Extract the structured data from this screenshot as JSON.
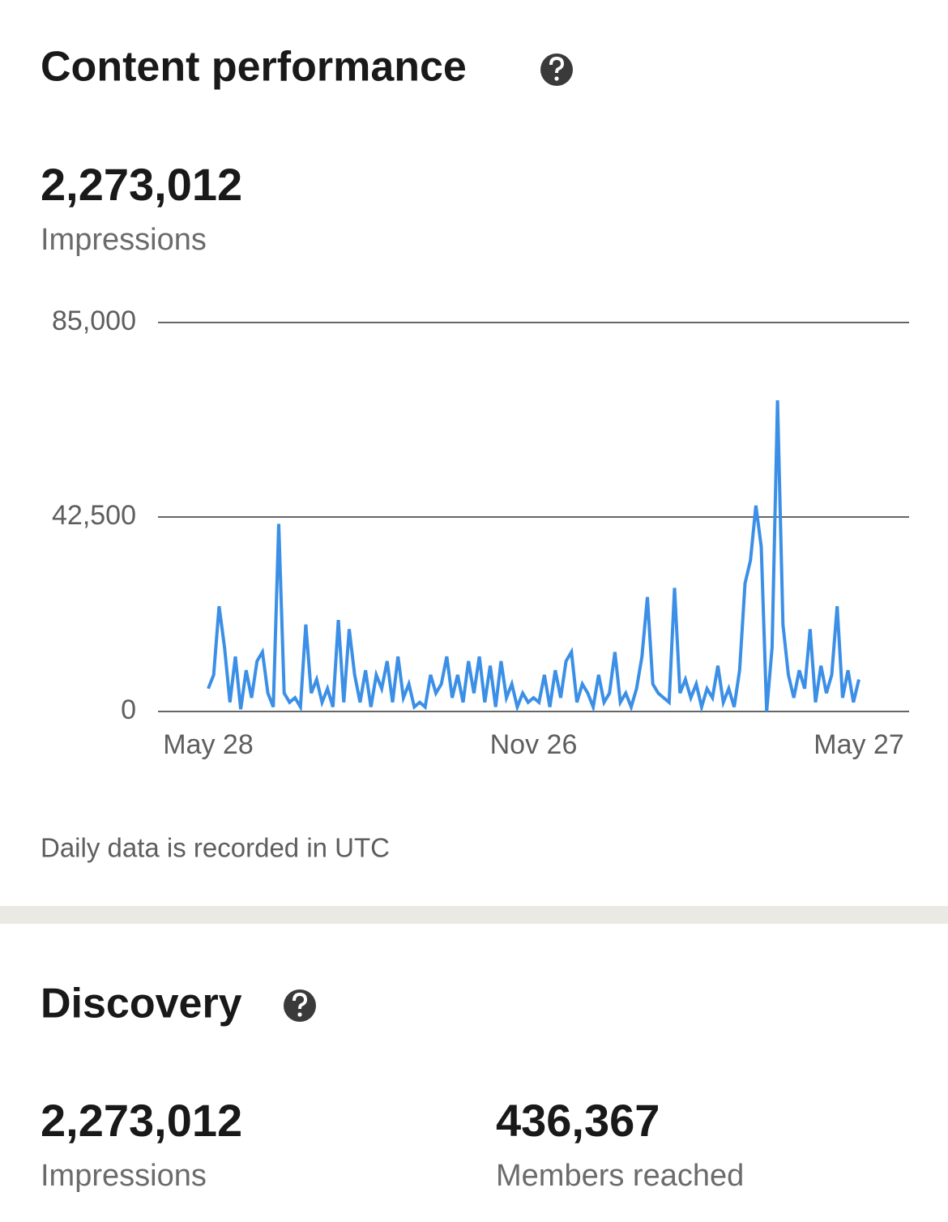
{
  "header": {
    "title": "Content performance"
  },
  "summary": {
    "value": "2,273,012",
    "label": "Impressions"
  },
  "chart_data": {
    "type": "line",
    "color": "#3b8fe6",
    "grid": true,
    "ylim": [
      0,
      85000
    ],
    "yticks": [
      0,
      {
        "value": 42500,
        "label": "42,500"
      },
      {
        "value": 85000,
        "label": "85,000"
      }
    ],
    "categories": [
      "May 28",
      null,
      null,
      null,
      null,
      null,
      null,
      null,
      null,
      null,
      null,
      null,
      null,
      null,
      null,
      null,
      null,
      null,
      null,
      null,
      null,
      null,
      null,
      null,
      null,
      null,
      null,
      null,
      null,
      null,
      null,
      null,
      null,
      null,
      null,
      null,
      null,
      null,
      null,
      null,
      null,
      null,
      null,
      null,
      null,
      null,
      null,
      null,
      null,
      null,
      null,
      null,
      null,
      null,
      null,
      null,
      null,
      null,
      null,
      null,
      "Nov 26",
      null,
      null,
      null,
      null,
      null,
      null,
      null,
      null,
      null,
      null,
      null,
      null,
      null,
      null,
      null,
      null,
      null,
      null,
      null,
      null,
      null,
      null,
      null,
      null,
      null,
      null,
      null,
      null,
      null,
      null,
      null,
      null,
      null,
      null,
      null,
      null,
      null,
      null,
      null,
      null,
      null,
      null,
      null,
      null,
      null,
      null,
      null,
      null,
      null,
      null,
      null,
      null,
      null,
      null,
      null,
      null,
      null,
      null,
      null,
      "May 27"
    ],
    "values": [
      5000,
      8000,
      23000,
      14000,
      2000,
      12000,
      500,
      9000,
      3000,
      11000,
      13000,
      4000,
      1000,
      41000,
      4000,
      2000,
      3000,
      1000,
      19000,
      4000,
      7000,
      2000,
      5000,
      1000,
      20000,
      2000,
      18000,
      8000,
      2000,
      9000,
      1000,
      8000,
      5000,
      11000,
      2000,
      12000,
      3000,
      6000,
      1000,
      2000,
      1000,
      8000,
      4000,
      6000,
      12000,
      3000,
      8000,
      2000,
      11000,
      4000,
      12000,
      2000,
      10000,
      1000,
      11000,
      3000,
      6000,
      1000,
      4000,
      2000,
      3000,
      2000,
      8000,
      1000,
      9000,
      3000,
      11000,
      13000,
      2000,
      6000,
      4000,
      1000,
      8000,
      2000,
      4000,
      13000,
      2000,
      4000,
      1000,
      5000,
      12000,
      25000,
      6000,
      4000,
      3000,
      2000,
      27000,
      4000,
      7000,
      3000,
      6000,
      1000,
      5000,
      3000,
      10000,
      2000,
      5000,
      1000,
      9000,
      28000,
      33000,
      45000,
      36000,
      0,
      14000,
      68000,
      19000,
      8000,
      3000,
      9000,
      5000,
      18000,
      2000,
      10000,
      4000,
      8000,
      23000,
      3000,
      9000,
      2000,
      7000
    ]
  },
  "note": "Daily data is recorded in UTC",
  "discovery": {
    "title": "Discovery",
    "stats": [
      {
        "value": "2,273,012",
        "label": "Impressions"
      },
      {
        "value": "436,367",
        "label": "Members reached"
      }
    ]
  }
}
